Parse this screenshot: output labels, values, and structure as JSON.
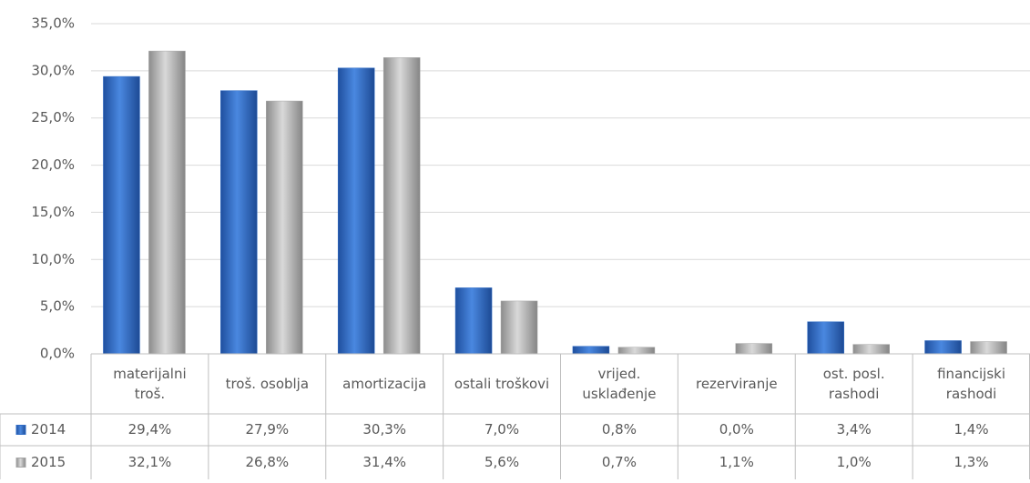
{
  "chart_data": {
    "type": "bar",
    "categories": [
      "materijalni troš.",
      "troš. osoblja",
      "amortizacija",
      "ostali troškovi",
      "vrijed. usklađenje",
      "rezerviranje",
      "ost. posl. rashodi",
      "financijski rashodi"
    ],
    "series": [
      {
        "name": "2014",
        "color": "#2e6bc6",
        "values": [
          29.4,
          27.9,
          30.3,
          7.0,
          0.8,
          0.0,
          3.4,
          1.4
        ],
        "value_labels": [
          "29,4%",
          "27,9%",
          "30,3%",
          "7,0%",
          "0,8%",
          "0,0%",
          "3,4%",
          "1,4%"
        ]
      },
      {
        "name": "2015",
        "color": "#a6a6a6",
        "values": [
          32.1,
          26.8,
          31.4,
          5.6,
          0.7,
          1.1,
          1.0,
          1.3
        ],
        "value_labels": [
          "32,1%",
          "26,8%",
          "31,4%",
          "5,6%",
          "0,7%",
          "1,1%",
          "1,0%",
          "1,3%"
        ]
      }
    ],
    "ylim": [
      0,
      35
    ],
    "yticks": [
      {
        "value": 0,
        "label": "0,0%"
      },
      {
        "value": 5,
        "label": "5,0%"
      },
      {
        "value": 10,
        "label": "10,0%"
      },
      {
        "value": 15,
        "label": "15,0%"
      },
      {
        "value": 20,
        "label": "20,0%"
      },
      {
        "value": 25,
        "label": "25,0%"
      },
      {
        "value": 30,
        "label": "30,0%"
      },
      {
        "value": 35,
        "label": "35,0%"
      }
    ],
    "grid": true
  }
}
